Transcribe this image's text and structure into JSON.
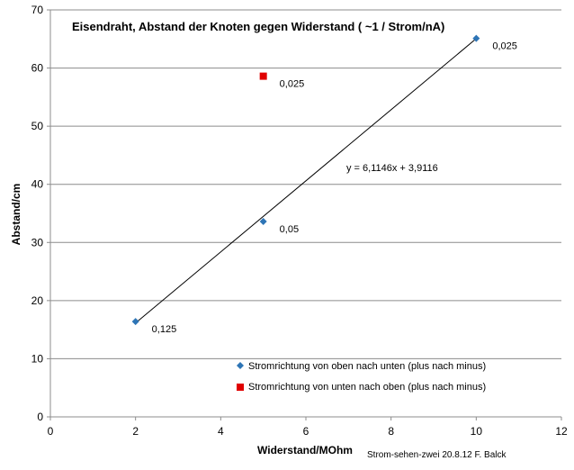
{
  "chart_data": {
    "type": "scatter",
    "title": "Eisendraht, Abstand der Knoten gegen Widerstand ( ~1 / Strom/nA)",
    "xlabel": "Widerstand/MOhm",
    "ylabel": "Abstand/cm",
    "xlim": [
      0,
      12
    ],
    "ylim": [
      0,
      70
    ],
    "x_ticks": [
      "0",
      "2",
      "4",
      "6",
      "8",
      "10",
      "12"
    ],
    "y_ticks": [
      "0",
      "10",
      "20",
      "30",
      "40",
      "50",
      "60",
      "70"
    ],
    "grid": "horizontal",
    "legend_position": "bottom-center, inside plot",
    "series": [
      {
        "name": "Stromrichtung von oben nach unten (plus nach minus)",
        "marker": "diamond",
        "color": "#2e75b6",
        "points": [
          {
            "x": 2,
            "y": 16.4,
            "label": "0,125"
          },
          {
            "x": 5,
            "y": 33.6,
            "label": "0,05"
          },
          {
            "x": 10,
            "y": 65.1,
            "label": "0,025"
          }
        ]
      },
      {
        "name": "Stromrichtung von unten nach oben (plus nach minus)",
        "marker": "square",
        "color": "#e00000",
        "points": [
          {
            "x": 5,
            "y": 58.6,
            "label": "0,025"
          }
        ]
      }
    ],
    "trendline": {
      "slope": 6.1146,
      "intercept": 3.9116,
      "x_range": [
        2,
        10
      ],
      "equation_label": "y = 6,1146x + 3,9116"
    },
    "credit": "Strom-sehen-zwei 20.8.12  F. Balck"
  }
}
